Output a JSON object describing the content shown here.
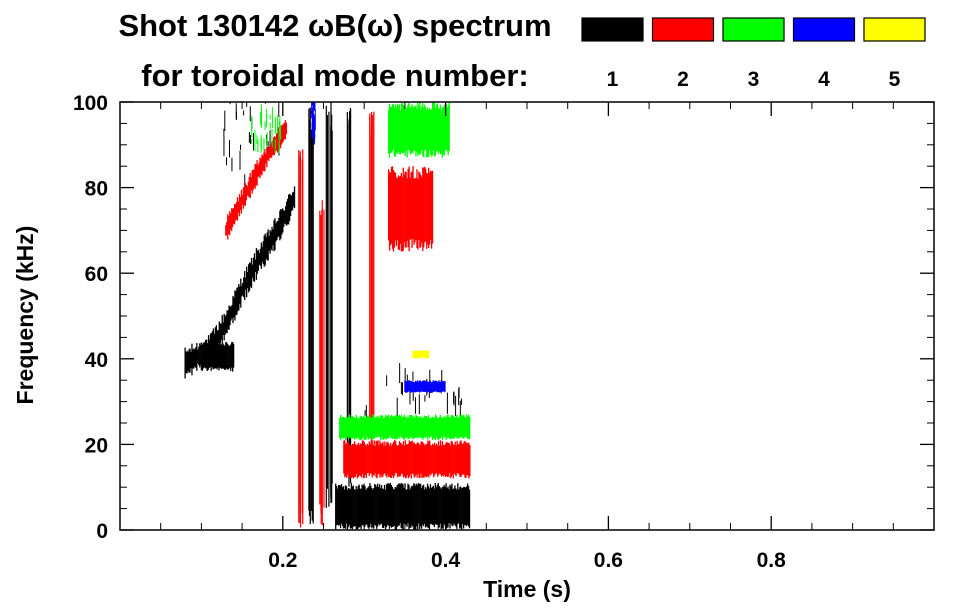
{
  "chart_data": {
    "type": "heatmap",
    "title_line1": "Shot 130142 ωB(ω) spectrum",
    "title_line2": "for toroidal mode number:",
    "xlabel": "Time (s)",
    "ylabel": "Frequency (kHz)",
    "xlim": [
      0.0,
      1.0
    ],
    "ylim": [
      0,
      100
    ],
    "x_ticks": [
      0.2,
      0.4,
      0.6,
      0.8
    ],
    "x_tick_labels": [
      "0.2",
      "0.4",
      "0.6",
      "0.8"
    ],
    "y_ticks": [
      0,
      20,
      40,
      60,
      80,
      100
    ],
    "y_tick_labels": [
      "0",
      "20",
      "40",
      "60",
      "80",
      "100"
    ],
    "grid": false,
    "legend_placement": "top",
    "legend": [
      {
        "label": "1",
        "color": "#000000"
      },
      {
        "label": "2",
        "color": "#ff0000"
      },
      {
        "label": "3",
        "color": "#00ff00"
      },
      {
        "label": "4",
        "color": "#0000ff"
      },
      {
        "label": "5",
        "color": "#ffff00"
      }
    ],
    "series": [
      {
        "mode": "1",
        "color": "#000000",
        "features": [
          {
            "kind": "chirp",
            "t": [
              0.08,
              0.11,
              0.13,
              0.15,
              0.17,
              0.19,
              0.205,
              0.215
            ],
            "f": [
              39,
              42,
              48,
              56,
              63,
              69,
              74,
              78
            ],
            "width_khz": 5
          },
          {
            "kind": "patch",
            "t": [
              0.1,
              0.14
            ],
            "f": [
              37,
              44
            ]
          },
          {
            "kind": "broadband_column",
            "t": 0.235,
            "f": [
              0,
              100
            ],
            "width_s": 0.008
          },
          {
            "kind": "broadband_column",
            "t": 0.258,
            "f": [
              5,
              100
            ],
            "width_s": 0.01
          },
          {
            "kind": "broadband_column",
            "t": 0.282,
            "f": [
              10,
              100
            ],
            "width_s": 0.006
          },
          {
            "kind": "band",
            "t": [
              0.265,
              0.43
            ],
            "f": [
              0,
              11
            ]
          },
          {
            "kind": "fringe",
            "t": [
              0.12,
              0.2
            ],
            "f": [
              80,
              100
            ]
          },
          {
            "kind": "fringe",
            "t": [
              0.3,
              0.42
            ],
            "f": [
              25,
              35
            ]
          }
        ]
      },
      {
        "mode": "2",
        "color": "#ff0000",
        "features": [
          {
            "kind": "chirp",
            "t": [
              0.13,
              0.15,
              0.17,
              0.19,
              0.205
            ],
            "f": [
              70,
              77,
              84,
              90,
              94
            ],
            "width_khz": 4
          },
          {
            "kind": "broadband_column",
            "t": 0.222,
            "f": [
              0,
              90
            ],
            "width_s": 0.006
          },
          {
            "kind": "broadband_column",
            "t": 0.248,
            "f": [
              0,
              80
            ],
            "width_s": 0.006
          },
          {
            "kind": "broadband_column",
            "t": 0.308,
            "f": [
              20,
              100
            ],
            "width_s": 0.008
          },
          {
            "kind": "band",
            "t": [
              0.275,
              0.43
            ],
            "f": [
              12,
              21
            ]
          },
          {
            "kind": "patch",
            "t": [
              0.33,
              0.385
            ],
            "f": [
              65,
              85
            ]
          }
        ]
      },
      {
        "mode": "3",
        "color": "#00ff00",
        "features": [
          {
            "kind": "band",
            "t": [
              0.27,
              0.43
            ],
            "f": [
              21,
              27
            ]
          },
          {
            "kind": "patch",
            "t": [
              0.33,
              0.405
            ],
            "f": [
              87,
              100
            ]
          },
          {
            "kind": "fringe",
            "t": [
              0.16,
              0.2
            ],
            "f": [
              88,
              96
            ]
          }
        ]
      },
      {
        "mode": "4",
        "color": "#0000ff",
        "features": [
          {
            "kind": "band",
            "t": [
              0.35,
              0.4
            ],
            "f": [
              32,
              35
            ]
          },
          {
            "kind": "fringe",
            "t": [
              0.235,
              0.24
            ],
            "f": [
              90,
              100
            ]
          }
        ]
      },
      {
        "mode": "5",
        "color": "#ffff00",
        "features": [
          {
            "kind": "patch",
            "t": [
              0.36,
              0.38
            ],
            "f": [
              40,
              42
            ]
          }
        ]
      }
    ]
  }
}
